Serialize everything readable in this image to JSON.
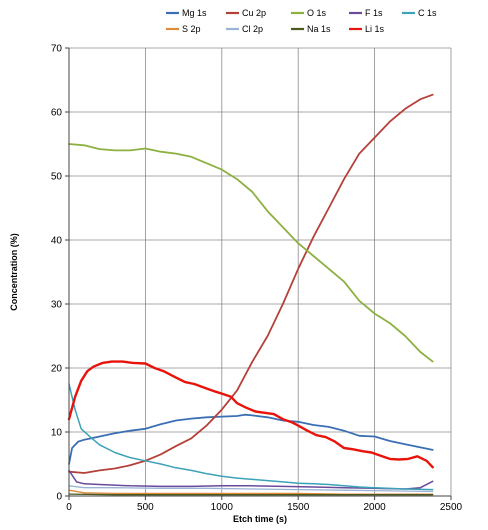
{
  "chart_data": {
    "type": "line",
    "title": "",
    "xlabel": "Etch time (s)",
    "ylabel": "Concentration (%)",
    "xlim": [
      0,
      2500
    ],
    "ylim": [
      0,
      70
    ],
    "x_ticks": [
      0,
      500,
      1000,
      1500,
      2000,
      2500
    ],
    "y_ticks": [
      0,
      10,
      20,
      30,
      40,
      50,
      60,
      70
    ],
    "grid": true,
    "legend_position": "top",
    "series": [
      {
        "name": "Mg 1s",
        "color": "#3b6fb4",
        "width": 1.8,
        "points": [
          [
            0,
            5
          ],
          [
            20,
            7.5
          ],
          [
            60,
            8.5
          ],
          [
            100,
            8.8
          ],
          [
            200,
            9.3
          ],
          [
            300,
            9.8
          ],
          [
            400,
            10.2
          ],
          [
            500,
            10.5
          ],
          [
            600,
            11.2
          ],
          [
            700,
            11.8
          ],
          [
            800,
            12.1
          ],
          [
            900,
            12.3
          ],
          [
            1000,
            12.4
          ],
          [
            1100,
            12.5
          ],
          [
            1150,
            12.7
          ],
          [
            1200,
            12.6
          ],
          [
            1300,
            12.3
          ],
          [
            1400,
            11.8
          ],
          [
            1500,
            11.6
          ],
          [
            1600,
            11.1
          ],
          [
            1700,
            10.8
          ],
          [
            1800,
            10.2
          ],
          [
            1900,
            9.4
          ],
          [
            2000,
            9.3
          ],
          [
            2100,
            8.6
          ],
          [
            2200,
            8.1
          ],
          [
            2300,
            7.6
          ],
          [
            2380,
            7.2
          ]
        ]
      },
      {
        "name": "Cu 2p",
        "color": "#b5403a",
        "width": 1.8,
        "points": [
          [
            0,
            3.8
          ],
          [
            100,
            3.6
          ],
          [
            200,
            4.0
          ],
          [
            300,
            4.3
          ],
          [
            400,
            4.8
          ],
          [
            500,
            5.5
          ],
          [
            600,
            6.5
          ],
          [
            700,
            7.8
          ],
          [
            800,
            9.0
          ],
          [
            900,
            11.0
          ],
          [
            1000,
            13.5
          ],
          [
            1100,
            16.5
          ],
          [
            1200,
            21.0
          ],
          [
            1300,
            25.0
          ],
          [
            1400,
            30.0
          ],
          [
            1500,
            35.5
          ],
          [
            1600,
            40.5
          ],
          [
            1700,
            45.0
          ],
          [
            1800,
            49.5
          ],
          [
            1900,
            53.5
          ],
          [
            2000,
            56.0
          ],
          [
            2100,
            58.5
          ],
          [
            2200,
            60.5
          ],
          [
            2300,
            62.0
          ],
          [
            2380,
            62.7
          ]
        ]
      },
      {
        "name": "O 1s",
        "color": "#8db040",
        "width": 1.8,
        "points": [
          [
            0,
            55.0
          ],
          [
            100,
            54.8
          ],
          [
            200,
            54.2
          ],
          [
            300,
            54.0
          ],
          [
            400,
            54.0
          ],
          [
            500,
            54.3
          ],
          [
            600,
            53.8
          ],
          [
            700,
            53.5
          ],
          [
            800,
            53.0
          ],
          [
            900,
            52.0
          ],
          [
            1000,
            51.0
          ],
          [
            1100,
            49.5
          ],
          [
            1200,
            47.5
          ],
          [
            1300,
            44.5
          ],
          [
            1400,
            42.0
          ],
          [
            1500,
            39.5
          ],
          [
            1600,
            37.5
          ],
          [
            1700,
            35.5
          ],
          [
            1800,
            33.5
          ],
          [
            1900,
            30.5
          ],
          [
            2000,
            28.5
          ],
          [
            2100,
            27.0
          ],
          [
            2200,
            25.0
          ],
          [
            2300,
            22.5
          ],
          [
            2380,
            21.0
          ]
        ]
      },
      {
        "name": "F 1s",
        "color": "#6a4a9a",
        "width": 1.5,
        "points": [
          [
            0,
            4.0
          ],
          [
            50,
            2.2
          ],
          [
            100,
            1.9
          ],
          [
            200,
            1.8
          ],
          [
            400,
            1.6
          ],
          [
            600,
            1.5
          ],
          [
            800,
            1.5
          ],
          [
            1000,
            1.6
          ],
          [
            1200,
            1.6
          ],
          [
            1400,
            1.5
          ],
          [
            1600,
            1.4
          ],
          [
            1800,
            1.3
          ],
          [
            2000,
            1.2
          ],
          [
            2200,
            1.1
          ],
          [
            2300,
            1.3
          ],
          [
            2380,
            2.3
          ]
        ]
      },
      {
        "name": "C 1s",
        "color": "#3ba2b8",
        "width": 1.5,
        "points": [
          [
            0,
            17.5
          ],
          [
            40,
            13.5
          ],
          [
            80,
            10.5
          ],
          [
            150,
            9.0
          ],
          [
            200,
            8.0
          ],
          [
            300,
            6.8
          ],
          [
            400,
            6.0
          ],
          [
            500,
            5.5
          ],
          [
            600,
            5.0
          ],
          [
            700,
            4.4
          ],
          [
            800,
            4.0
          ],
          [
            900,
            3.5
          ],
          [
            1000,
            3.1
          ],
          [
            1100,
            2.8
          ],
          [
            1200,
            2.6
          ],
          [
            1300,
            2.4
          ],
          [
            1400,
            2.2
          ],
          [
            1500,
            2.0
          ],
          [
            1600,
            1.9
          ],
          [
            1700,
            1.8
          ],
          [
            1800,
            1.6
          ],
          [
            1900,
            1.4
          ],
          [
            2000,
            1.3
          ],
          [
            2200,
            1.1
          ],
          [
            2380,
            1.0
          ]
        ]
      },
      {
        "name": "S 2p",
        "color": "#e08a3c",
        "width": 1.3,
        "points": [
          [
            0,
            0.9
          ],
          [
            100,
            0.5
          ],
          [
            300,
            0.4
          ],
          [
            600,
            0.4
          ],
          [
            900,
            0.4
          ],
          [
            1200,
            0.4
          ],
          [
            1500,
            0.4
          ],
          [
            1800,
            0.3
          ],
          [
            2100,
            0.3
          ],
          [
            2380,
            0.3
          ]
        ]
      },
      {
        "name": "Cl 2p",
        "color": "#9ab3d6",
        "width": 1.3,
        "points": [
          [
            0,
            1.6
          ],
          [
            100,
            1.3
          ],
          [
            300,
            1.3
          ],
          [
            600,
            1.2
          ],
          [
            900,
            1.2
          ],
          [
            1200,
            1.1
          ],
          [
            1500,
            1.0
          ],
          [
            1800,
            0.9
          ],
          [
            2100,
            0.8
          ],
          [
            2380,
            0.7
          ]
        ]
      },
      {
        "name": "Na 1s",
        "color": "#4b5a1e",
        "width": 1.3,
        "points": [
          [
            0,
            0.3
          ],
          [
            300,
            0.2
          ],
          [
            600,
            0.2
          ],
          [
            900,
            0.2
          ],
          [
            1200,
            0.2
          ],
          [
            1500,
            0.2
          ],
          [
            1800,
            0.2
          ],
          [
            2100,
            0.2
          ],
          [
            2380,
            0.2
          ]
        ]
      },
      {
        "name": "Li 1s",
        "color": "#e8140c",
        "width": 2.4,
        "points": [
          [
            0,
            12
          ],
          [
            40,
            15.5
          ],
          [
            80,
            18.0
          ],
          [
            120,
            19.5
          ],
          [
            160,
            20.2
          ],
          [
            220,
            20.8
          ],
          [
            280,
            21.0
          ],
          [
            350,
            21.0
          ],
          [
            420,
            20.8
          ],
          [
            500,
            20.7
          ],
          [
            560,
            20.0
          ],
          [
            620,
            19.5
          ],
          [
            700,
            18.5
          ],
          [
            760,
            17.8
          ],
          [
            820,
            17.5
          ],
          [
            900,
            16.8
          ],
          [
            960,
            16.3
          ],
          [
            1000,
            16.0
          ],
          [
            1060,
            15.5
          ],
          [
            1100,
            14.5
          ],
          [
            1160,
            13.8
          ],
          [
            1220,
            13.2
          ],
          [
            1280,
            13.0
          ],
          [
            1340,
            12.8
          ],
          [
            1400,
            12.0
          ],
          [
            1460,
            11.5
          ],
          [
            1500,
            11.0
          ],
          [
            1560,
            10.2
          ],
          [
            1620,
            9.5
          ],
          [
            1680,
            9.2
          ],
          [
            1740,
            8.5
          ],
          [
            1800,
            7.5
          ],
          [
            1860,
            7.3
          ],
          [
            1920,
            7.0
          ],
          [
            1980,
            6.8
          ],
          [
            2040,
            6.3
          ],
          [
            2100,
            5.8
          ],
          [
            2160,
            5.7
          ],
          [
            2220,
            5.8
          ],
          [
            2280,
            6.2
          ],
          [
            2340,
            5.5
          ],
          [
            2380,
            4.5
          ]
        ]
      }
    ]
  }
}
